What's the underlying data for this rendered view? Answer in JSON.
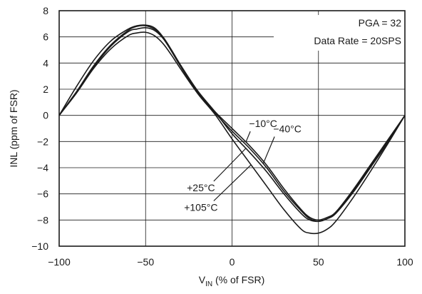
{
  "chart_data": {
    "type": "line",
    "xlabel_main": "V",
    "xlabel_sub": "IN",
    "xlabel_rest": " (% of FSR)",
    "ylabel": "INL (ppm of FSR)",
    "xlim": [
      -100,
      100
    ],
    "ylim": [
      -10,
      8
    ],
    "x_ticks": [
      -100,
      -50,
      0,
      50,
      100
    ],
    "x_tick_labels": [
      "−100",
      "−50",
      "0",
      "50",
      "100"
    ],
    "y_ticks": [
      -10,
      -8,
      -6,
      -4,
      -2,
      0,
      2,
      4,
      6,
      8
    ],
    "y_tick_labels": [
      "−10",
      "−8",
      "−6",
      "−4",
      "−2",
      "0",
      "2",
      "4",
      "6",
      "8"
    ],
    "grid": true,
    "info_box": [
      "PGA = 32",
      "Data Rate = 20SPS"
    ],
    "series": [
      {
        "name": "−10°C",
        "x": [
          -100,
          -90,
          -80,
          -70,
          -60,
          -55,
          -50,
          -45,
          -40,
          -35,
          -30,
          -20,
          -10,
          0,
          10,
          20,
          30,
          40,
          45,
          50,
          55,
          60,
          70,
          80,
          90,
          100
        ],
        "y": [
          0,
          1.8,
          3.7,
          5.3,
          6.4,
          6.6,
          6.7,
          6.5,
          5.9,
          4.9,
          3.8,
          1.8,
          0.3,
          -1.0,
          -2.3,
          -3.8,
          -5.6,
          -7.2,
          -7.8,
          -8.0,
          -7.8,
          -7.4,
          -5.8,
          -3.9,
          -2.0,
          0
        ]
      },
      {
        "name": "−40°C",
        "x": [
          -100,
          -90,
          -80,
          -70,
          -60,
          -55,
          -50,
          -45,
          -40,
          -35,
          -30,
          -20,
          -10,
          0,
          10,
          20,
          30,
          40,
          45,
          50,
          55,
          60,
          70,
          80,
          90,
          100
        ],
        "y": [
          0,
          1.7,
          3.6,
          5.1,
          6.1,
          6.3,
          6.35,
          6.1,
          5.5,
          4.6,
          3.6,
          1.7,
          0.2,
          -1.2,
          -2.5,
          -4.0,
          -5.8,
          -7.3,
          -7.9,
          -8.1,
          -7.9,
          -7.5,
          -5.9,
          -4.0,
          -2.1,
          0
        ]
      },
      {
        "name": "+25°C",
        "x": [
          -100,
          -90,
          -80,
          -70,
          -60,
          -55,
          -50,
          -45,
          -40,
          -35,
          -30,
          -20,
          -10,
          0,
          10,
          20,
          30,
          40,
          45,
          50,
          55,
          60,
          70,
          80,
          90,
          100
        ],
        "y": [
          0,
          1.8,
          3.8,
          5.4,
          6.5,
          6.8,
          6.85,
          6.6,
          6.0,
          5.0,
          3.9,
          1.9,
          0.3,
          -1.4,
          -2.8,
          -4.3,
          -6.0,
          -7.5,
          -8.0,
          -8.1,
          -7.9,
          -7.4,
          -5.7,
          -3.8,
          -1.9,
          0
        ]
      },
      {
        "name": "+105°C",
        "x": [
          -100,
          -90,
          -80,
          -70,
          -60,
          -55,
          -50,
          -45,
          -40,
          -35,
          -30,
          -20,
          -10,
          0,
          10,
          20,
          30,
          40,
          45,
          50,
          55,
          60,
          70,
          80,
          90,
          100
        ],
        "y": [
          0,
          2.2,
          4.2,
          5.7,
          6.6,
          6.85,
          6.9,
          6.7,
          6.0,
          4.9,
          3.8,
          1.7,
          0.1,
          -1.8,
          -3.6,
          -5.4,
          -7.2,
          -8.7,
          -9.0,
          -9.0,
          -8.7,
          -8.1,
          -6.3,
          -4.3,
          -2.2,
          0
        ]
      }
    ],
    "annotations": [
      {
        "text": "−10°C",
        "series": "−10°C",
        "at_x": 8,
        "label_x": 18,
        "label_y": -0.9
      },
      {
        "text": "−40°C",
        "series": "−40°C",
        "at_x": 18,
        "label_x": 32,
        "label_y": -1.3
      },
      {
        "text": "+25°C",
        "series": "+25°C",
        "at_x": 8,
        "label_x": -18,
        "label_y": -5.8
      },
      {
        "text": "+105°C",
        "series": "+105°C",
        "at_x": 11,
        "label_x": -18,
        "label_y": -7.3
      }
    ]
  }
}
